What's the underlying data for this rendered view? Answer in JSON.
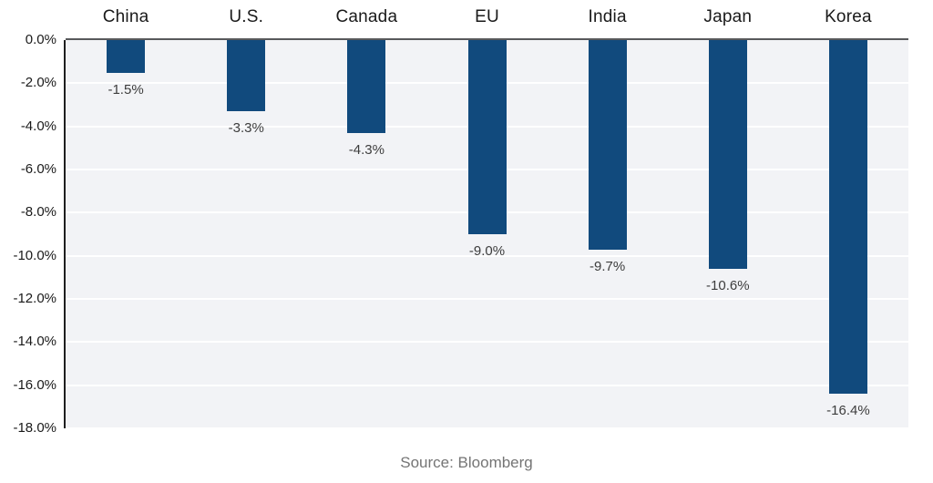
{
  "chart_data": {
    "type": "bar",
    "title": "",
    "categories": [
      "China",
      "U.S.",
      "Canada",
      "EU",
      "India",
      "Japan",
      "Korea"
    ],
    "values": [
      -1.5,
      -3.3,
      -4.3,
      -9.0,
      -9.7,
      -10.6,
      -16.4
    ],
    "value_labels": [
      "-1.5%",
      "-3.3%",
      "-4.3%",
      "-9.0%",
      "-9.7%",
      "-10.6%",
      "-16.4%"
    ],
    "y_ticks": [
      "0.0%",
      "-2.0%",
      "-4.0%",
      "-6.0%",
      "-8.0%",
      "-10.0%",
      "-12.0%",
      "-14.0%",
      "-16.0%",
      "-18.0%"
    ],
    "ylim": [
      -18,
      0
    ],
    "grid": true,
    "legend": false,
    "xlabel": "",
    "ylabel": "",
    "colors": {
      "bar": "#114a7d",
      "plot_background": "#f2f3f6",
      "gridline": "#ffffff",
      "top_axis": "#58595b",
      "left_axis": "#1f1f1f",
      "category_label": "#1a1a1a",
      "tick_label": "#1a1a1a",
      "value_label": "#3d3d3d",
      "source_text": "#757575"
    }
  },
  "footer": {
    "source": "Source: Bloomberg"
  }
}
